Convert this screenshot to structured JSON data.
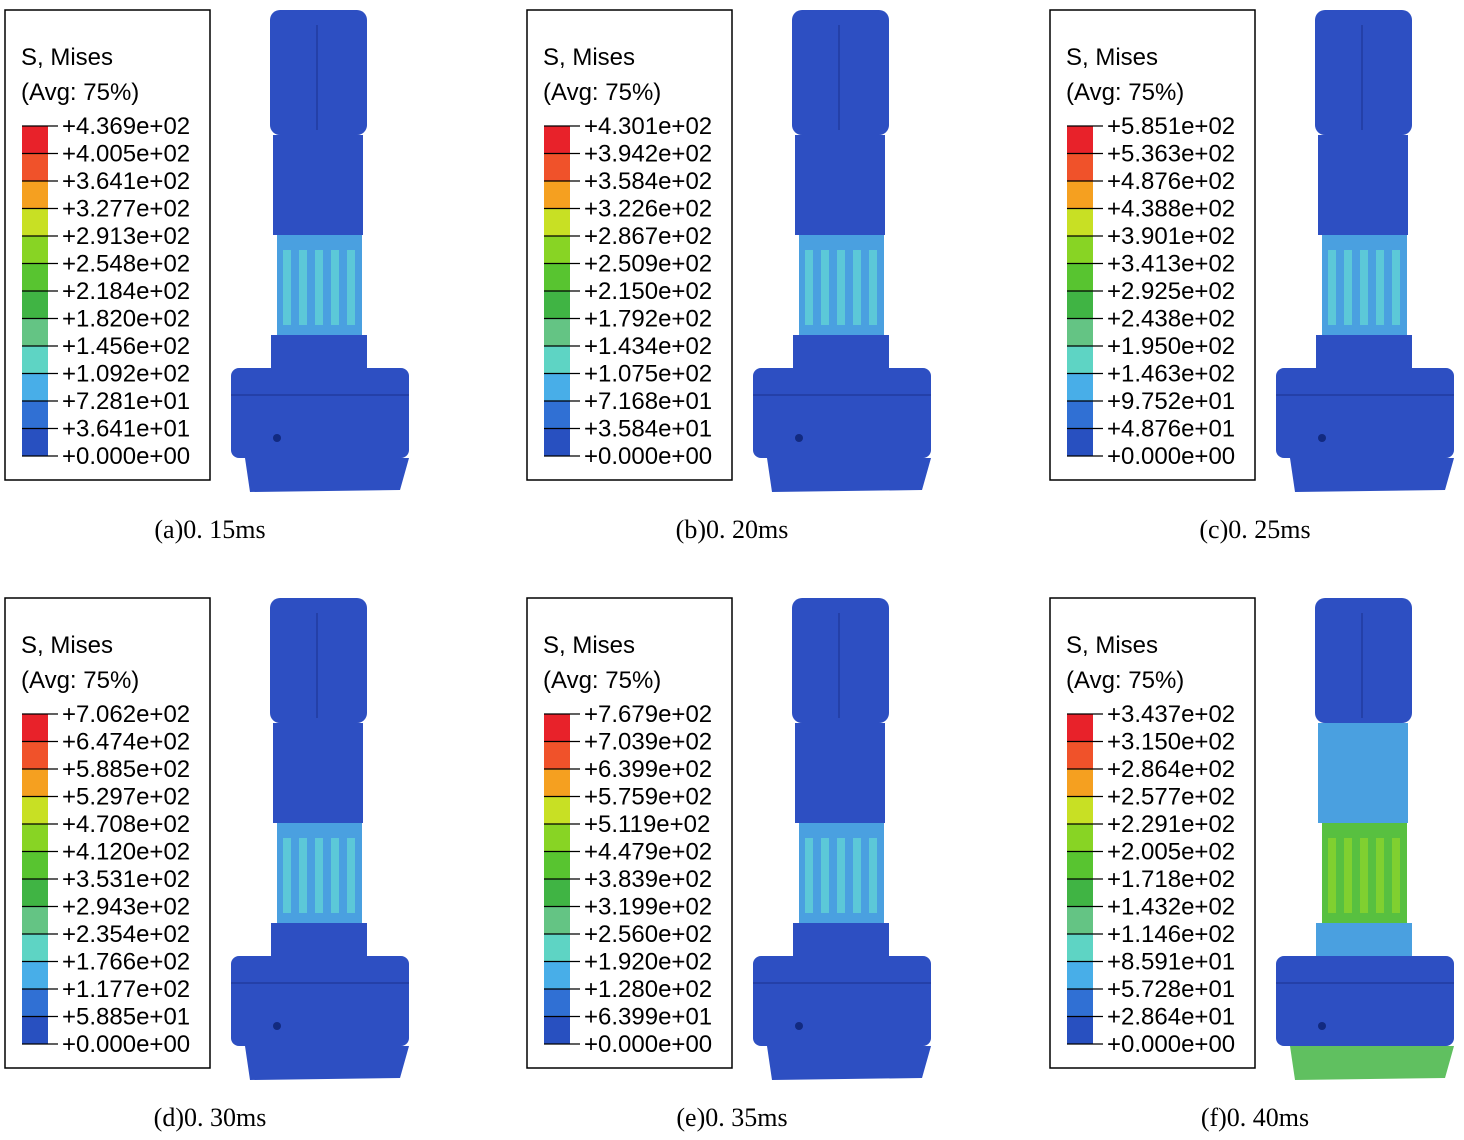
{
  "legend_colors": [
    "#e8222a",
    "#f0522a",
    "#f5a020",
    "#c8e024",
    "#88d424",
    "#58c430",
    "#40b444",
    "#64c484",
    "#5ed4c4",
    "#48aee8",
    "#3070d4",
    "#2850c0"
  ],
  "panels": [
    {
      "title": "S, Mises",
      "subtitle": "(Avg: 75%)",
      "labels": [
        "+4.369e+02",
        "+4.005e+02",
        "+3.641e+02",
        "+3.277e+02",
        "+2.913e+02",
        "+2.548e+02",
        "+2.184e+02",
        "+1.820e+02",
        "+1.456e+02",
        "+1.092e+02",
        "+7.281e+01",
        "+3.641e+01",
        "+0.000e+00"
      ],
      "caption": "(a)0. 15ms"
    },
    {
      "title": "S, Mises",
      "subtitle": "(Avg: 75%)",
      "labels": [
        "+4.301e+02",
        "+3.942e+02",
        "+3.584e+02",
        "+3.226e+02",
        "+2.867e+02",
        "+2.509e+02",
        "+2.150e+02",
        "+1.792e+02",
        "+1.434e+02",
        "+1.075e+02",
        "+7.168e+01",
        "+3.584e+01",
        "+0.000e+00"
      ],
      "caption": "(b)0. 20ms"
    },
    {
      "title": "S, Mises",
      "subtitle": "(Avg: 75%)",
      "labels": [
        "+5.851e+02",
        "+5.363e+02",
        "+4.876e+02",
        "+4.388e+02",
        "+3.901e+02",
        "+3.413e+02",
        "+2.925e+02",
        "+2.438e+02",
        "+1.950e+02",
        "+1.463e+02",
        "+9.752e+01",
        "+4.876e+01",
        "+0.000e+00"
      ],
      "caption": "(c)0. 25ms"
    },
    {
      "title": "S, Mises",
      "subtitle": "(Avg: 75%)",
      "labels": [
        "+7.062e+02",
        "+6.474e+02",
        "+5.885e+02",
        "+5.297e+02",
        "+4.708e+02",
        "+4.120e+02",
        "+3.531e+02",
        "+2.943e+02",
        "+2.354e+02",
        "+1.766e+02",
        "+1.177e+02",
        "+5.885e+01",
        "+0.000e+00"
      ],
      "caption": "(d)0. 30ms"
    },
    {
      "title": "S, Mises",
      "subtitle": "(Avg: 75%)",
      "labels": [
        "+7.679e+02",
        "+7.039e+02",
        "+6.399e+02",
        "+5.759e+02",
        "+5.119e+02",
        "+4.479e+02",
        "+3.839e+02",
        "+3.199e+02",
        "+2.560e+02",
        "+1.920e+02",
        "+1.280e+02",
        "+6.399e+01",
        "+0.000e+00"
      ],
      "caption": "(e)0. 35ms"
    },
    {
      "title": "S, Mises",
      "subtitle": "(Avg: 75%)",
      "labels": [
        "+3.437e+02",
        "+3.150e+02",
        "+2.864e+02",
        "+2.577e+02",
        "+2.291e+02",
        "+2.005e+02",
        "+1.718e+02",
        "+1.432e+02",
        "+1.146e+02",
        "+8.591e+01",
        "+5.728e+01",
        "+2.864e+01",
        "+0.000e+00"
      ],
      "caption": "(f)0. 40ms"
    }
  ]
}
